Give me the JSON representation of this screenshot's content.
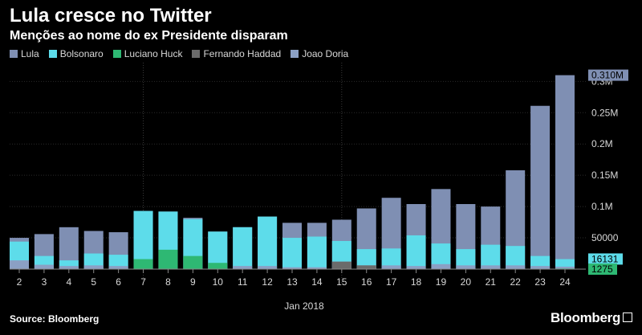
{
  "header": {
    "title": "Lula cresce no Twitter",
    "subtitle": "Menções ao nome do ex Presidente disparam"
  },
  "footer": {
    "source": "Source: Bloomberg",
    "brand": "Bloomberg"
  },
  "colors": {
    "background": "#000000",
    "Lula": "#7f8fb3",
    "Bolsonaro": "#5ddcea",
    "Luciano Huck": "#2eb873",
    "Fernando Haddad": "#6b6b6b",
    "Joao Doria": "#8ba0c4",
    "grid": "#2a2a2a"
  },
  "chart_data": {
    "type": "bar",
    "stacked": true,
    "categories": [
      "2",
      "3",
      "4",
      "5",
      "6",
      "7",
      "8",
      "9",
      "10",
      "11",
      "12",
      "13",
      "14",
      "15",
      "16",
      "17",
      "18",
      "19",
      "20",
      "21",
      "22",
      "23",
      "24"
    ],
    "xlabel": "Jan 2018",
    "ylim": [
      0,
      0.33
    ],
    "y_unit": "millions",
    "y_ticks": [
      {
        "value": 0.05,
        "label": "50000"
      },
      {
        "value": 0.1,
        "label": "0.1M"
      },
      {
        "value": 0.15,
        "label": "0.15M"
      },
      {
        "value": 0.2,
        "label": "0.2M"
      },
      {
        "value": 0.25,
        "label": "0.25M"
      },
      {
        "value": 0.3,
        "label": "0.3M"
      }
    ],
    "legend_position": "top-left",
    "grid": true,
    "series": [
      {
        "name": "Lula",
        "values": [
          0.05,
          0.056,
          0.067,
          0.061,
          0.059,
          0.093,
          0.092,
          0.082,
          0.06,
          0.067,
          0.084,
          0.074,
          0.074,
          0.079,
          0.097,
          0.114,
          0.104,
          0.128,
          0.104,
          0.1,
          0.158,
          0.261,
          0.31
        ]
      },
      {
        "name": "Bolsonaro",
        "values": [
          0.044,
          0.021,
          0.014,
          0.025,
          0.023,
          0.093,
          0.092,
          0.08,
          0.06,
          0.067,
          0.084,
          0.05,
          0.052,
          0.045,
          0.032,
          0.033,
          0.054,
          0.041,
          0.032,
          0.039,
          0.037,
          0.021,
          0.016
        ]
      },
      {
        "name": "Luciano Huck",
        "values": [
          0,
          0,
          0,
          0,
          0,
          0.016,
          0.031,
          0.021,
          0.01,
          0,
          0,
          0,
          0,
          0,
          0,
          0,
          0,
          0,
          0,
          0,
          0,
          0,
          0.001
        ]
      },
      {
        "name": "Fernando Haddad",
        "values": [
          0,
          0,
          0,
          0,
          0,
          0,
          0,
          0,
          0,
          0,
          0,
          0,
          0,
          0.012,
          0.006,
          0,
          0,
          0,
          0,
          0,
          0,
          0,
          0
        ]
      },
      {
        "name": "Joao Doria",
        "values": [
          0.014,
          0.007,
          0.005,
          0.006,
          0.005,
          0,
          0,
          0,
          0,
          0.005,
          0.005,
          0.003,
          0.003,
          0.012,
          0.006,
          0.006,
          0.005,
          0.008,
          0.006,
          0.006,
          0.006,
          0.005,
          0.004
        ]
      }
    ],
    "last_value_labels": [
      {
        "series": "Lula",
        "value": 0.31,
        "label": "0.310M"
      },
      {
        "series": "Bolsonaro",
        "value": 0.016131,
        "label": "16131"
      },
      {
        "series": "Luciano Huck",
        "value": 0.001275,
        "label": "1275"
      }
    ]
  }
}
